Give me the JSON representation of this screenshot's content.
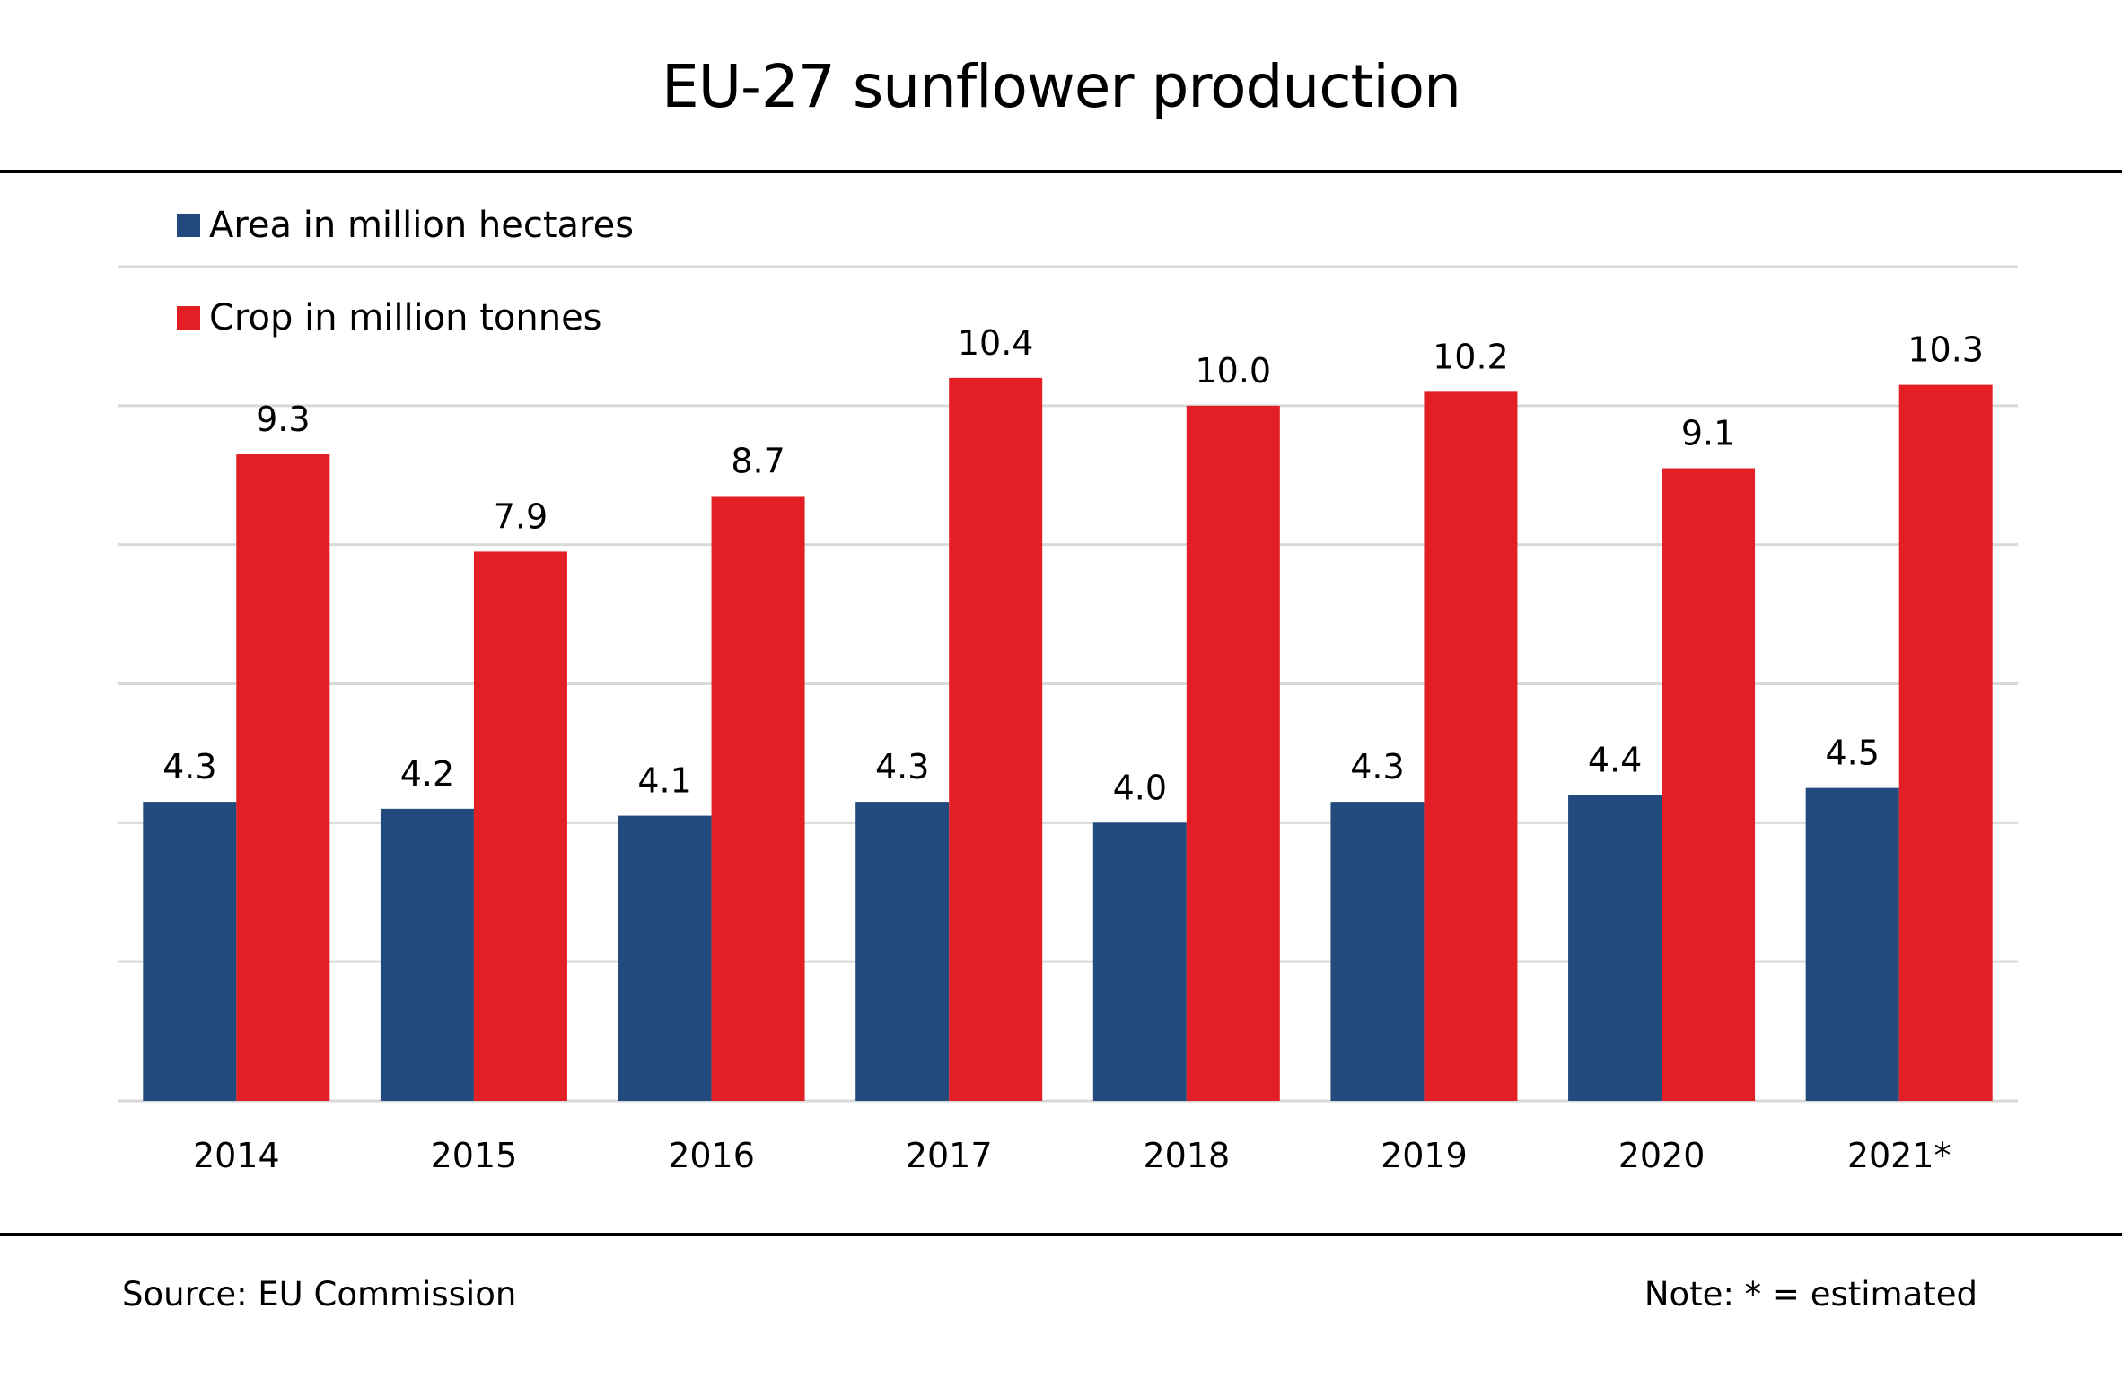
{
  "colors": {
    "area": "#234a7c",
    "crop": "#e31e24",
    "grid": "#d9d9d9",
    "rule": "#000000"
  },
  "chart_data": {
    "type": "bar",
    "title": "EU-27 sunflower production",
    "xlabel": "",
    "ylabel": "",
    "categories": [
      "2014",
      "2015",
      "2016",
      "2017",
      "2018",
      "2019",
      "2020",
      "2021*"
    ],
    "series": [
      {
        "name": "Area in million hectares",
        "key": "area",
        "values": [
          4.3,
          4.2,
          4.1,
          4.3,
          4.0,
          4.3,
          4.4,
          4.5
        ],
        "labels": [
          "4.3",
          "4.2",
          "4.1",
          "4.3",
          "4.0",
          "4.3",
          "4.4",
          "4.5"
        ]
      },
      {
        "name": "Crop in million tonnes",
        "key": "crop",
        "values": [
          9.3,
          7.9,
          8.7,
          10.4,
          10.0,
          10.2,
          9.1,
          10.3
        ],
        "labels": [
          "9.3",
          "7.9",
          "8.7",
          "10.4",
          "10.0",
          "10.2",
          "9.1",
          "10.3"
        ]
      }
    ],
    "ylim": [
      0,
      12
    ],
    "yticks": [
      0,
      2,
      4,
      6,
      8,
      10,
      12
    ],
    "grid": true,
    "y_axis_labels_shown": false,
    "legend_position": "top-left"
  },
  "footer": {
    "source": "Source:  EU Commission",
    "note": "Note: * = estimated"
  }
}
